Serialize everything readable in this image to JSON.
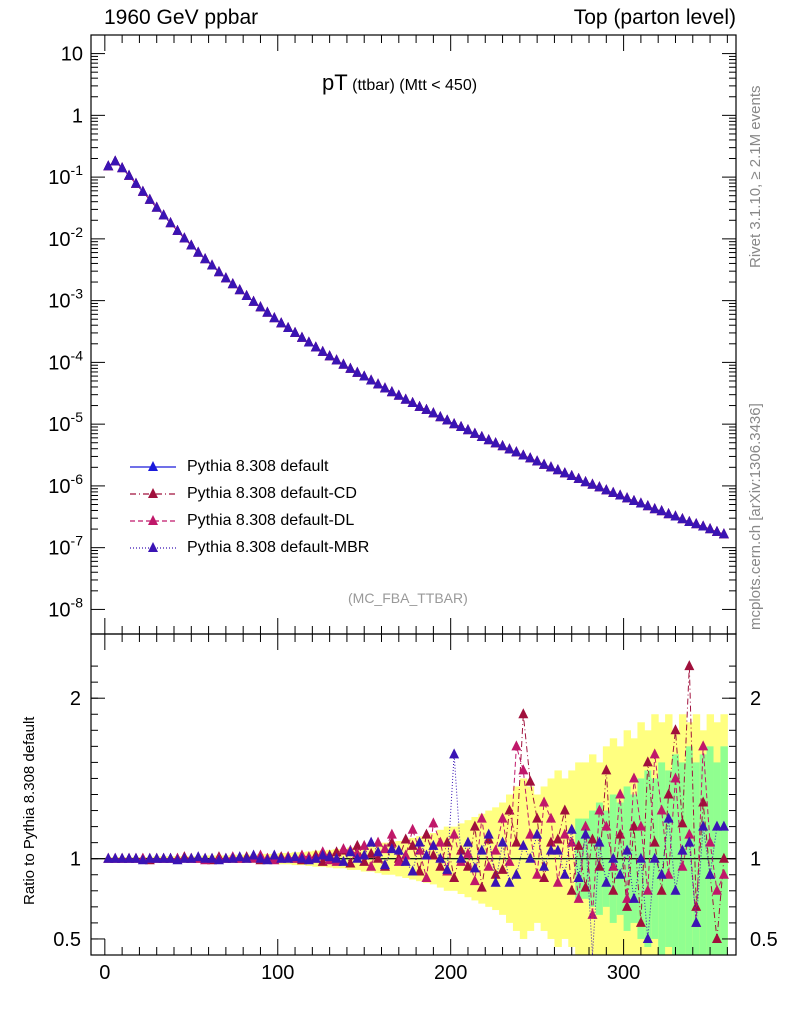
{
  "header": {
    "left": "1960 GeV ppbar",
    "right": "Top (parton level)"
  },
  "side_labels": {
    "rivet": "Rivet 3.1.10, ≥ 2.1M events",
    "mcplots": "mcplots.cern.ch [arXiv:1306.3436]"
  },
  "plot_title": {
    "main": "pT",
    "sub": " (ttbar) (Mtt < 450)"
  },
  "analysis_label": "(MC_FBA_TTBAR)",
  "colors": {
    "default": "#1a1adb",
    "cd": "#a0103c",
    "dl": "#c0186a",
    "mbr": "#3a14b4",
    "band_yellow": "#ffff80",
    "band_green": "#90ff90"
  },
  "chart_data": [
    {
      "type": "line",
      "title": "pT (ttbar) (Mtt < 450)",
      "yscale": "log",
      "ylim": [
        4e-09,
        20
      ],
      "xlim": [
        -8,
        365
      ],
      "y_tick_labels": [
        "10",
        "1",
        "10^-1",
        "10^-2",
        "10^-3",
        "10^-4",
        "10^-5",
        "10^-6",
        "10^-7",
        "10^-8"
      ],
      "x_tick_labels": [
        "0",
        "100",
        "200",
        "300"
      ],
      "legend": {
        "placement": "lower-left",
        "entries": [
          "Pythia 8.308 default",
          "Pythia 8.308 default-CD",
          "Pythia 8.308 default-DL",
          "Pythia 8.308 default-MBR"
        ]
      },
      "x": [
        2,
        6,
        10,
        14,
        18,
        22,
        26,
        30,
        34,
        38,
        42,
        46,
        50,
        54,
        58,
        62,
        66,
        70,
        74,
        78,
        82,
        86,
        90,
        94,
        98,
        102,
        106,
        110,
        114,
        118,
        122,
        126,
        130,
        134,
        138,
        142,
        146,
        150,
        154,
        158,
        162,
        166,
        170,
        174,
        178,
        182,
        186,
        190,
        194,
        198,
        202,
        206,
        210,
        214,
        218,
        222,
        226,
        230,
        234,
        238,
        242,
        246,
        250,
        254,
        258,
        262,
        266,
        270,
        274,
        278,
        282,
        286,
        290,
        294,
        298,
        302,
        306,
        310,
        314,
        318,
        322,
        326,
        330,
        334,
        338,
        342,
        346,
        350,
        354,
        358
      ],
      "series": [
        {
          "name": "Pythia 8.308 default",
          "values": [
            0.15,
            0.18,
            0.14,
            0.105,
            0.078,
            0.058,
            0.043,
            0.032,
            0.024,
            0.018,
            0.0135,
            0.0102,
            0.0078,
            0.006,
            0.0047,
            0.0037,
            0.0029,
            0.0023,
            0.00185,
            0.00148,
            0.00119,
            0.00096,
            0.00078,
            0.00064,
            0.00052,
            0.00043,
            0.00036,
            0.0003,
            0.00025,
            0.00021,
            0.000175,
            0.000148,
            0.000126,
            0.000108,
            9.2e-05,
            7.9e-05,
            6.8e-05,
            5.9e-05,
            5.1e-05,
            4.4e-05,
            3.8e-05,
            3.3e-05,
            2.9e-05,
            2.5e-05,
            2.2e-05,
            1.9e-05,
            1.7e-05,
            1.5e-05,
            1.3e-05,
            1.15e-05,
            1e-05,
            9e-06,
            8e-06,
            7e-06,
            6.2e-06,
            5.5e-06,
            4.9e-06,
            4.4e-06,
            3.9e-06,
            3.5e-06,
            3.1e-06,
            2.8e-06,
            2.5e-06,
            2.2e-06,
            2e-06,
            1.8e-06,
            1.6e-06,
            1.45e-06,
            1.3e-06,
            1.15e-06,
            1.05e-06,
            9.5e-07,
            8.5e-07,
            7.7e-07,
            7e-07,
            6.3e-07,
            5.7e-07,
            5.2e-07,
            4.7e-07,
            4.2e-07,
            3.9e-07,
            3.5e-07,
            3.2e-07,
            2.9e-07,
            2.6e-07,
            2.4e-07,
            2.2e-07,
            2e-07,
            1.8e-07,
            1.65e-07
          ]
        },
        {
          "name": "Pythia 8.308 default-CD",
          "values": [
            0.15,
            0.18,
            0.14,
            0.105,
            0.078,
            0.058,
            0.043,
            0.032,
            0.024,
            0.018,
            0.0135,
            0.0102,
            0.0078,
            0.006,
            0.0047,
            0.0037,
            0.0029,
            0.0023,
            0.00185,
            0.00148,
            0.00119,
            0.00096,
            0.00078,
            0.00064,
            0.00052,
            0.00043,
            0.00036,
            0.0003,
            0.00025,
            0.00021,
            0.000175,
            0.000148,
            0.000126,
            0.000108,
            9.2e-05,
            7.9e-05,
            6.8e-05,
            5.9e-05,
            5.1e-05,
            4.4e-05,
            3.8e-05,
            3.3e-05,
            2.9e-05,
            2.5e-05,
            2.2e-05,
            1.9e-05,
            1.7e-05,
            1.5e-05,
            1.3e-05,
            1.15e-05,
            1e-05,
            9e-06,
            8e-06,
            7e-06,
            6.2e-06,
            5.5e-06,
            4.9e-06,
            4.4e-06,
            3.9e-06,
            3.5e-06,
            3.1e-06,
            2.8e-06,
            2.5e-06,
            2.2e-06,
            2e-06,
            1.8e-06,
            1.6e-06,
            1.45e-06,
            1.3e-06,
            1.15e-06,
            1.05e-06,
            9.5e-07,
            8.5e-07,
            7.7e-07,
            7e-07,
            6.3e-07,
            5.7e-07,
            5.2e-07,
            4.7e-07,
            4.2e-07,
            3.9e-07,
            3.5e-07,
            3.2e-07,
            2.9e-07,
            2.6e-07,
            2.4e-07,
            2.2e-07,
            2e-07,
            1.8e-07,
            1.65e-07
          ]
        },
        {
          "name": "Pythia 8.308 default-DL",
          "values": [
            0.15,
            0.18,
            0.14,
            0.105,
            0.078,
            0.058,
            0.043,
            0.032,
            0.024,
            0.018,
            0.0135,
            0.0102,
            0.0078,
            0.006,
            0.0047,
            0.0037,
            0.0029,
            0.0023,
            0.00185,
            0.00148,
            0.00119,
            0.00096,
            0.00078,
            0.00064,
            0.00052,
            0.00043,
            0.00036,
            0.0003,
            0.00025,
            0.00021,
            0.000175,
            0.000148,
            0.000126,
            0.000108,
            9.2e-05,
            7.9e-05,
            6.8e-05,
            5.9e-05,
            5.1e-05,
            4.4e-05,
            3.8e-05,
            3.3e-05,
            2.9e-05,
            2.5e-05,
            2.2e-05,
            1.9e-05,
            1.7e-05,
            1.5e-05,
            1.3e-05,
            1.15e-05,
            1e-05,
            9e-06,
            8e-06,
            7e-06,
            6.2e-06,
            5.5e-06,
            4.9e-06,
            4.4e-06,
            3.9e-06,
            3.5e-06,
            3.1e-06,
            2.8e-06,
            2.5e-06,
            2.2e-06,
            2e-06,
            1.8e-06,
            1.6e-06,
            1.45e-06,
            1.3e-06,
            1.15e-06,
            1.05e-06,
            9.5e-07,
            8.5e-07,
            7.7e-07,
            7e-07,
            6.3e-07,
            5.7e-07,
            5.2e-07,
            4.7e-07,
            4.2e-07,
            3.9e-07,
            3.5e-07,
            3.2e-07,
            2.9e-07,
            2.6e-07,
            2.4e-07,
            2.2e-07,
            2e-07,
            1.8e-07,
            1.65e-07
          ]
        },
        {
          "name": "Pythia 8.308 default-MBR",
          "values": [
            0.15,
            0.18,
            0.14,
            0.105,
            0.078,
            0.058,
            0.043,
            0.032,
            0.024,
            0.018,
            0.0135,
            0.0102,
            0.0078,
            0.006,
            0.0047,
            0.0037,
            0.0029,
            0.0023,
            0.00185,
            0.00148,
            0.00119,
            0.00096,
            0.00078,
            0.00064,
            0.00052,
            0.00043,
            0.00036,
            0.0003,
            0.00025,
            0.00021,
            0.000175,
            0.000148,
            0.000126,
            0.000108,
            9.2e-05,
            7.9e-05,
            6.8e-05,
            5.9e-05,
            5.1e-05,
            4.4e-05,
            3.8e-05,
            3.3e-05,
            2.9e-05,
            2.5e-05,
            2.2e-05,
            1.9e-05,
            1.7e-05,
            1.5e-05,
            1.3e-05,
            1.15e-05,
            1e-05,
            9e-06,
            8e-06,
            7e-06,
            6.2e-06,
            5.5e-06,
            4.9e-06,
            4.4e-06,
            3.9e-06,
            3.5e-06,
            3.1e-06,
            2.8e-06,
            2.5e-06,
            2.2e-06,
            2e-06,
            1.8e-06,
            1.6e-06,
            1.45e-06,
            1.3e-06,
            1.15e-06,
            1.05e-06,
            9.5e-07,
            8.5e-07,
            7.7e-07,
            7e-07,
            6.3e-07,
            5.7e-07,
            5.2e-07,
            4.7e-07,
            4.2e-07,
            3.9e-07,
            3.5e-07,
            3.2e-07,
            2.9e-07,
            2.6e-07,
            2.4e-07,
            2.2e-07,
            2e-07,
            1.8e-07,
            1.65e-07
          ]
        }
      ]
    },
    {
      "type": "line",
      "ylabel": "Ratio to Pythia 8.308 default",
      "ylim": [
        0.4,
        2.4
      ],
      "xlim": [
        -8,
        365
      ],
      "y_tick_labels": [
        "0.5",
        "1",
        "2"
      ],
      "x_tick_labels": [
        "0",
        "100",
        "200",
        "300"
      ],
      "band_yellow": [
        0.01,
        0.01,
        0.01,
        0.01,
        0.01,
        0.01,
        0.01,
        0.015,
        0.015,
        0.015,
        0.015,
        0.015,
        0.015,
        0.015,
        0.02,
        0.02,
        0.02,
        0.02,
        0.025,
        0.025,
        0.025,
        0.025,
        0.03,
        0.03,
        0.03,
        0.035,
        0.035,
        0.04,
        0.04,
        0.045,
        0.05,
        0.05,
        0.055,
        0.06,
        0.06,
        0.07,
        0.07,
        0.08,
        0.08,
        0.09,
        0.1,
        0.1,
        0.11,
        0.12,
        0.13,
        0.14,
        0.15,
        0.16,
        0.18,
        0.2,
        0.2,
        0.22,
        0.24,
        0.26,
        0.28,
        0.3,
        0.32,
        0.35,
        0.4,
        0.45,
        0.5,
        0.45,
        0.4,
        0.45,
        0.5,
        0.55,
        0.5,
        0.55,
        0.6,
        0.6,
        0.65,
        0.6,
        0.7,
        0.75,
        0.7,
        0.8,
        0.75,
        0.85,
        0.8,
        0.9,
        0.85,
        0.9,
        0.8,
        0.9,
        0.85,
        0.9,
        0.8,
        0.9,
        0.85,
        0.9
      ],
      "band_green": [
        0.005,
        0.005,
        0.005,
        0.005,
        0.005,
        0.005,
        0.005,
        0.005,
        0.005,
        0.005,
        0.005,
        0.005,
        0.005,
        0.005,
        0.005,
        0.005,
        0.005,
        0.005,
        0.005,
        0.005,
        0.005,
        0.005,
        0.005,
        0.005,
        0.005,
        0.005,
        0.005,
        0.005,
        0.005,
        0.005,
        0.005,
        0.005,
        0.005,
        0.005,
        0.005,
        0.005,
        0.005,
        0.005,
        0.005,
        0.005,
        0.005,
        0.005,
        0.005,
        0.005,
        0.005,
        0.005,
        0.005,
        0.005,
        0.005,
        0.005,
        0.005,
        0.005,
        0.005,
        0.005,
        0.005,
        0.005,
        0.005,
        0.005,
        0.005,
        0.005,
        0.005,
        0.005,
        0.005,
        0.005,
        0.005,
        0.005,
        0.005,
        0.005,
        0.25,
        0.25,
        0.3,
        0.35,
        0.3,
        0.4,
        0.35,
        0.45,
        0.4,
        0.5,
        0.55,
        0.5,
        0.6,
        0.55,
        0.65,
        0.6,
        0.7,
        0.6,
        0.65,
        0.7,
        0.6,
        0.7
      ],
      "series": [
        {
          "name": "Pythia 8.308 default-CD",
          "values": [
            1.0,
            1.0,
            1.0,
            1.0,
            1.0,
            1.0,
            0.99,
            1.0,
            1.0,
            1.0,
            1.0,
            1.01,
            1.0,
            1.0,
            1.0,
            0.99,
            1.01,
            1.0,
            1.0,
            1.0,
            1.01,
            1.01,
            0.99,
            1.0,
            1.0,
            1.01,
            1.01,
            1.0,
            0.99,
            1.0,
            1.02,
            0.98,
            1.02,
            1.04,
            1.05,
            0.97,
            1.08,
            0.98,
            1.03,
            1.0,
            0.95,
            1.1,
            1.0,
            1.12,
            1.08,
            0.92,
            1.15,
            1.02,
            0.95,
            1.1,
            0.88,
            1.05,
            0.95,
            1.2,
            0.82,
            1.12,
            0.9,
            0.93,
            1.3,
            1.1,
            1.9,
            1.48,
            1.25,
            0.88,
            1.1,
            1.12,
            1.3,
            0.8,
            1.08,
            0.82,
            1.12,
            0.95,
            1.55,
            0.8,
            1.15,
            0.7,
            1.2,
            0.6,
            1.6,
            1.1,
            0.8,
            1.4,
            1.8,
            1.22,
            2.2,
            0.7,
            1.35,
            0.9,
            0.5,
            1.0
          ]
        },
        {
          "name": "Pythia 8.308 default-DL",
          "values": [
            1.0,
            1.0,
            1.0,
            1.0,
            1.0,
            1.0,
            1.0,
            1.0,
            1.0,
            1.0,
            1.0,
            1.0,
            1.0,
            1.0,
            0.99,
            1.0,
            1.0,
            1.0,
            1.01,
            1.0,
            1.0,
            1.0,
            1.02,
            1.0,
            0.99,
            1.0,
            1.01,
            1.0,
            1.02,
            1.01,
            1.0,
            1.04,
            0.99,
            0.98,
            1.06,
            1.05,
            1.03,
            1.08,
            0.95,
            1.1,
            1.06,
            1.15,
            0.98,
            1.02,
            1.18,
            1.05,
            0.88,
            1.22,
            1.1,
            0.92,
            1.15,
            0.98,
            1.03,
            0.86,
            1.25,
            0.95,
            1.05,
            1.25,
            0.98,
            1.7,
            1.55,
            1.15,
            0.9,
            1.35,
            1.25,
            0.85,
            1.15,
            1.1,
            0.75,
            1.2,
            0.65,
            1.3,
            1.2,
            0.95,
            1.4,
            0.75,
            1.5,
            1.2,
            0.8,
            1.65,
            1.3,
            0.9,
            1.5,
            0.95,
            1.15,
            0.6,
            1.7,
            1.1,
            0.8,
            0.9
          ]
        },
        {
          "name": "Pythia 8.308 default-MBR",
          "values": [
            1.0,
            1.0,
            1.0,
            1.0,
            1.0,
            0.99,
            1.0,
            1.0,
            1.0,
            1.0,
            0.99,
            1.0,
            1.0,
            1.01,
            1.0,
            1.0,
            0.99,
            1.0,
            1.0,
            1.01,
            1.0,
            1.02,
            1.0,
            0.99,
            1.02,
            1.0,
            1.0,
            1.01,
            1.0,
            0.99,
            1.0,
            1.02,
            1.01,
            1.0,
            0.98,
            1.04,
            1.0,
            1.02,
            1.1,
            1.04,
            0.96,
            1.06,
            1.05,
            0.98,
            0.92,
            1.1,
            1.02,
            1.08,
            1.0,
            0.93,
            1.65,
            1.0,
            1.1,
            0.94,
            1.05,
            1.15,
            0.85,
            1.1,
            0.85,
            0.9,
            1.08,
            1.0,
            1.15,
            0.95,
            1.05,
            1.05,
            0.9,
            1.18,
            0.88,
            1.15,
            0.35,
            1.1,
            0.85,
            1.0,
            0.9,
            1.05,
            0.75,
            1.0,
            0.5,
            1.0,
            0.9,
            1.25,
            0.8,
            1.05,
            1.1,
            0.6,
            1.2,
            0.9,
            1.2,
            1.2
          ]
        }
      ]
    }
  ]
}
